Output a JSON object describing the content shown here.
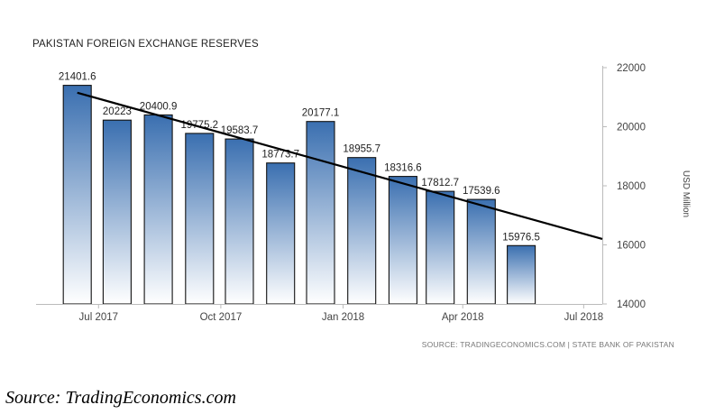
{
  "caption": "Source: TradingEconomics.com",
  "chart_data": {
    "type": "bar",
    "title": "PAKISTAN FOREIGN EXCHANGE RESERVES",
    "ylabel": "USD Million",
    "source": "SOURCE: TRADINGECONOMICS.COM | STATE BANK OF PAKISTAN",
    "ylim": [
      14000,
      22000
    ],
    "yticks": [
      14000,
      16000,
      18000,
      20000,
      22000
    ],
    "ytick_labels": [
      "14000",
      "16000",
      "18000",
      "20000",
      "22000"
    ],
    "xlim": [
      "2017-05-15",
      "2018-07-15"
    ],
    "xticks": [
      "2017-07-01",
      "2017-10-01",
      "2018-01-01",
      "2018-04-01",
      "2018-07-01"
    ],
    "xtick_labels": [
      "Jul 2017",
      "Oct 2017",
      "Jan 2018",
      "Apr 2018",
      "Jul 2018"
    ],
    "categories": [
      "2017-06",
      "2017-07",
      "2017-08",
      "2017-09",
      "2017-10",
      "2017-11",
      "2017-12",
      "2018-01",
      "2018-02",
      "2018-03",
      "2018-04",
      "2018-05"
    ],
    "values": [
      21401.6,
      20223,
      20400.9,
      19775.2,
      19583.7,
      18773.7,
      20177.1,
      18955.7,
      18316.6,
      17812.7,
      17539.6,
      15976.5
    ],
    "value_labels": [
      "21401.6",
      "20223",
      "20400.9",
      "19775.2",
      "19583.7",
      "18773.7",
      "20177.1",
      "18955.7",
      "18316.6",
      "17812.7",
      "17539.6",
      "15976.5"
    ],
    "trendline": {
      "start": [
        "2017-06",
        21150
      ],
      "end": [
        "2018-07-15",
        16200
      ]
    },
    "bar_gradient": [
      "#3a6fb0",
      "#ffffff"
    ],
    "grid": false,
    "y_axis_side": "right"
  }
}
